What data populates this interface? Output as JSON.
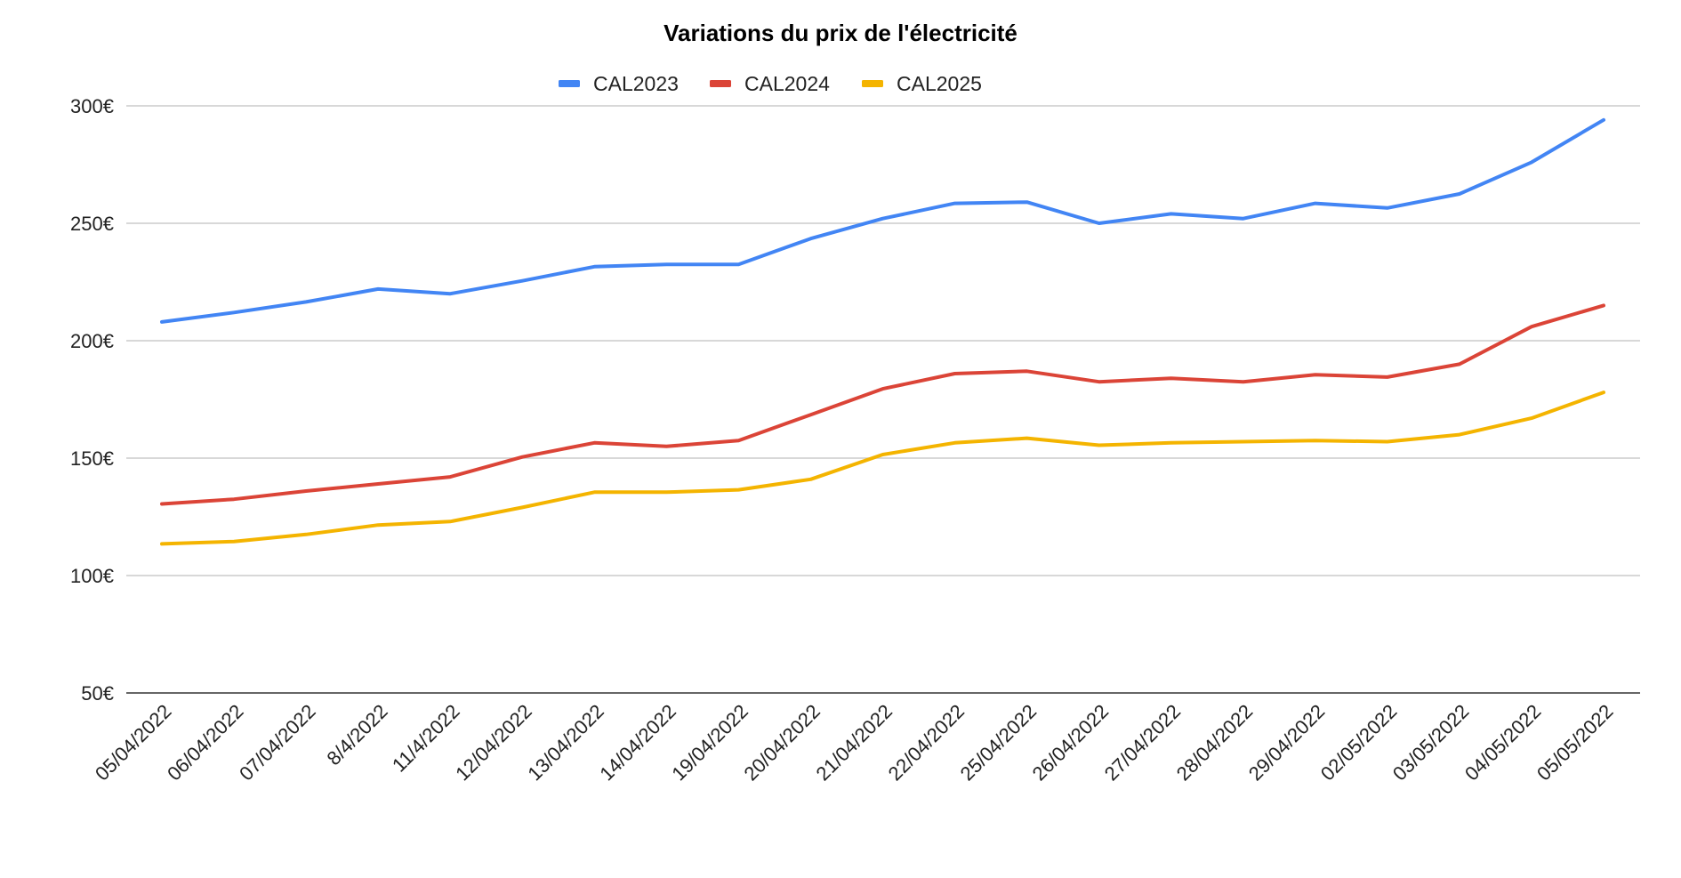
{
  "chart_data": {
    "type": "line",
    "title": "Variations du prix de l'électricité",
    "xlabel": "",
    "ylabel": "",
    "ylim": [
      50,
      300
    ],
    "y_ticks": [
      "50€",
      "100€",
      "150€",
      "200€",
      "250€",
      "300€"
    ],
    "y_tick_values": [
      50,
      100,
      150,
      200,
      250,
      300
    ],
    "grid": true,
    "legend_position": "top",
    "categories": [
      "05/04/2022",
      "06/04/2022",
      "07/04/2022",
      "8/4/2022",
      "11/4/2022",
      "12/04/2022",
      "13/04/2022",
      "14/04/2022",
      "19/04/2022",
      "20/04/2022",
      "21/04/2022",
      "22/04/2022",
      "25/04/2022",
      "26/04/2022",
      "27/04/2022",
      "28/04/2022",
      "29/04/2022",
      "02/05/2022",
      "03/05/2022",
      "04/05/2022",
      "05/05/2022"
    ],
    "series": [
      {
        "name": "CAL2023",
        "color": "#4285f4",
        "values": [
          208,
          212,
          216.5,
          222,
          220,
          225.5,
          231.5,
          232.5,
          232.5,
          243.5,
          252,
          258.5,
          259,
          250,
          254,
          252,
          258.5,
          256.5,
          262.5,
          276,
          294
        ]
      },
      {
        "name": "CAL2024",
        "color": "#db4437",
        "values": [
          130.5,
          132.5,
          136,
          139,
          142,
          150.5,
          156.5,
          155,
          157.5,
          168.5,
          179.5,
          186,
          187,
          182.5,
          184,
          182.5,
          185.5,
          184.5,
          190,
          206,
          215
        ]
      },
      {
        "name": "CAL2025",
        "color": "#f4b400",
        "values": [
          113.5,
          114.5,
          117.5,
          121.5,
          123,
          129,
          135.5,
          135.5,
          136.5,
          141,
          151.5,
          156.5,
          158.5,
          155.5,
          156.5,
          157,
          157.5,
          157,
          160,
          167,
          178
        ]
      }
    ]
  }
}
